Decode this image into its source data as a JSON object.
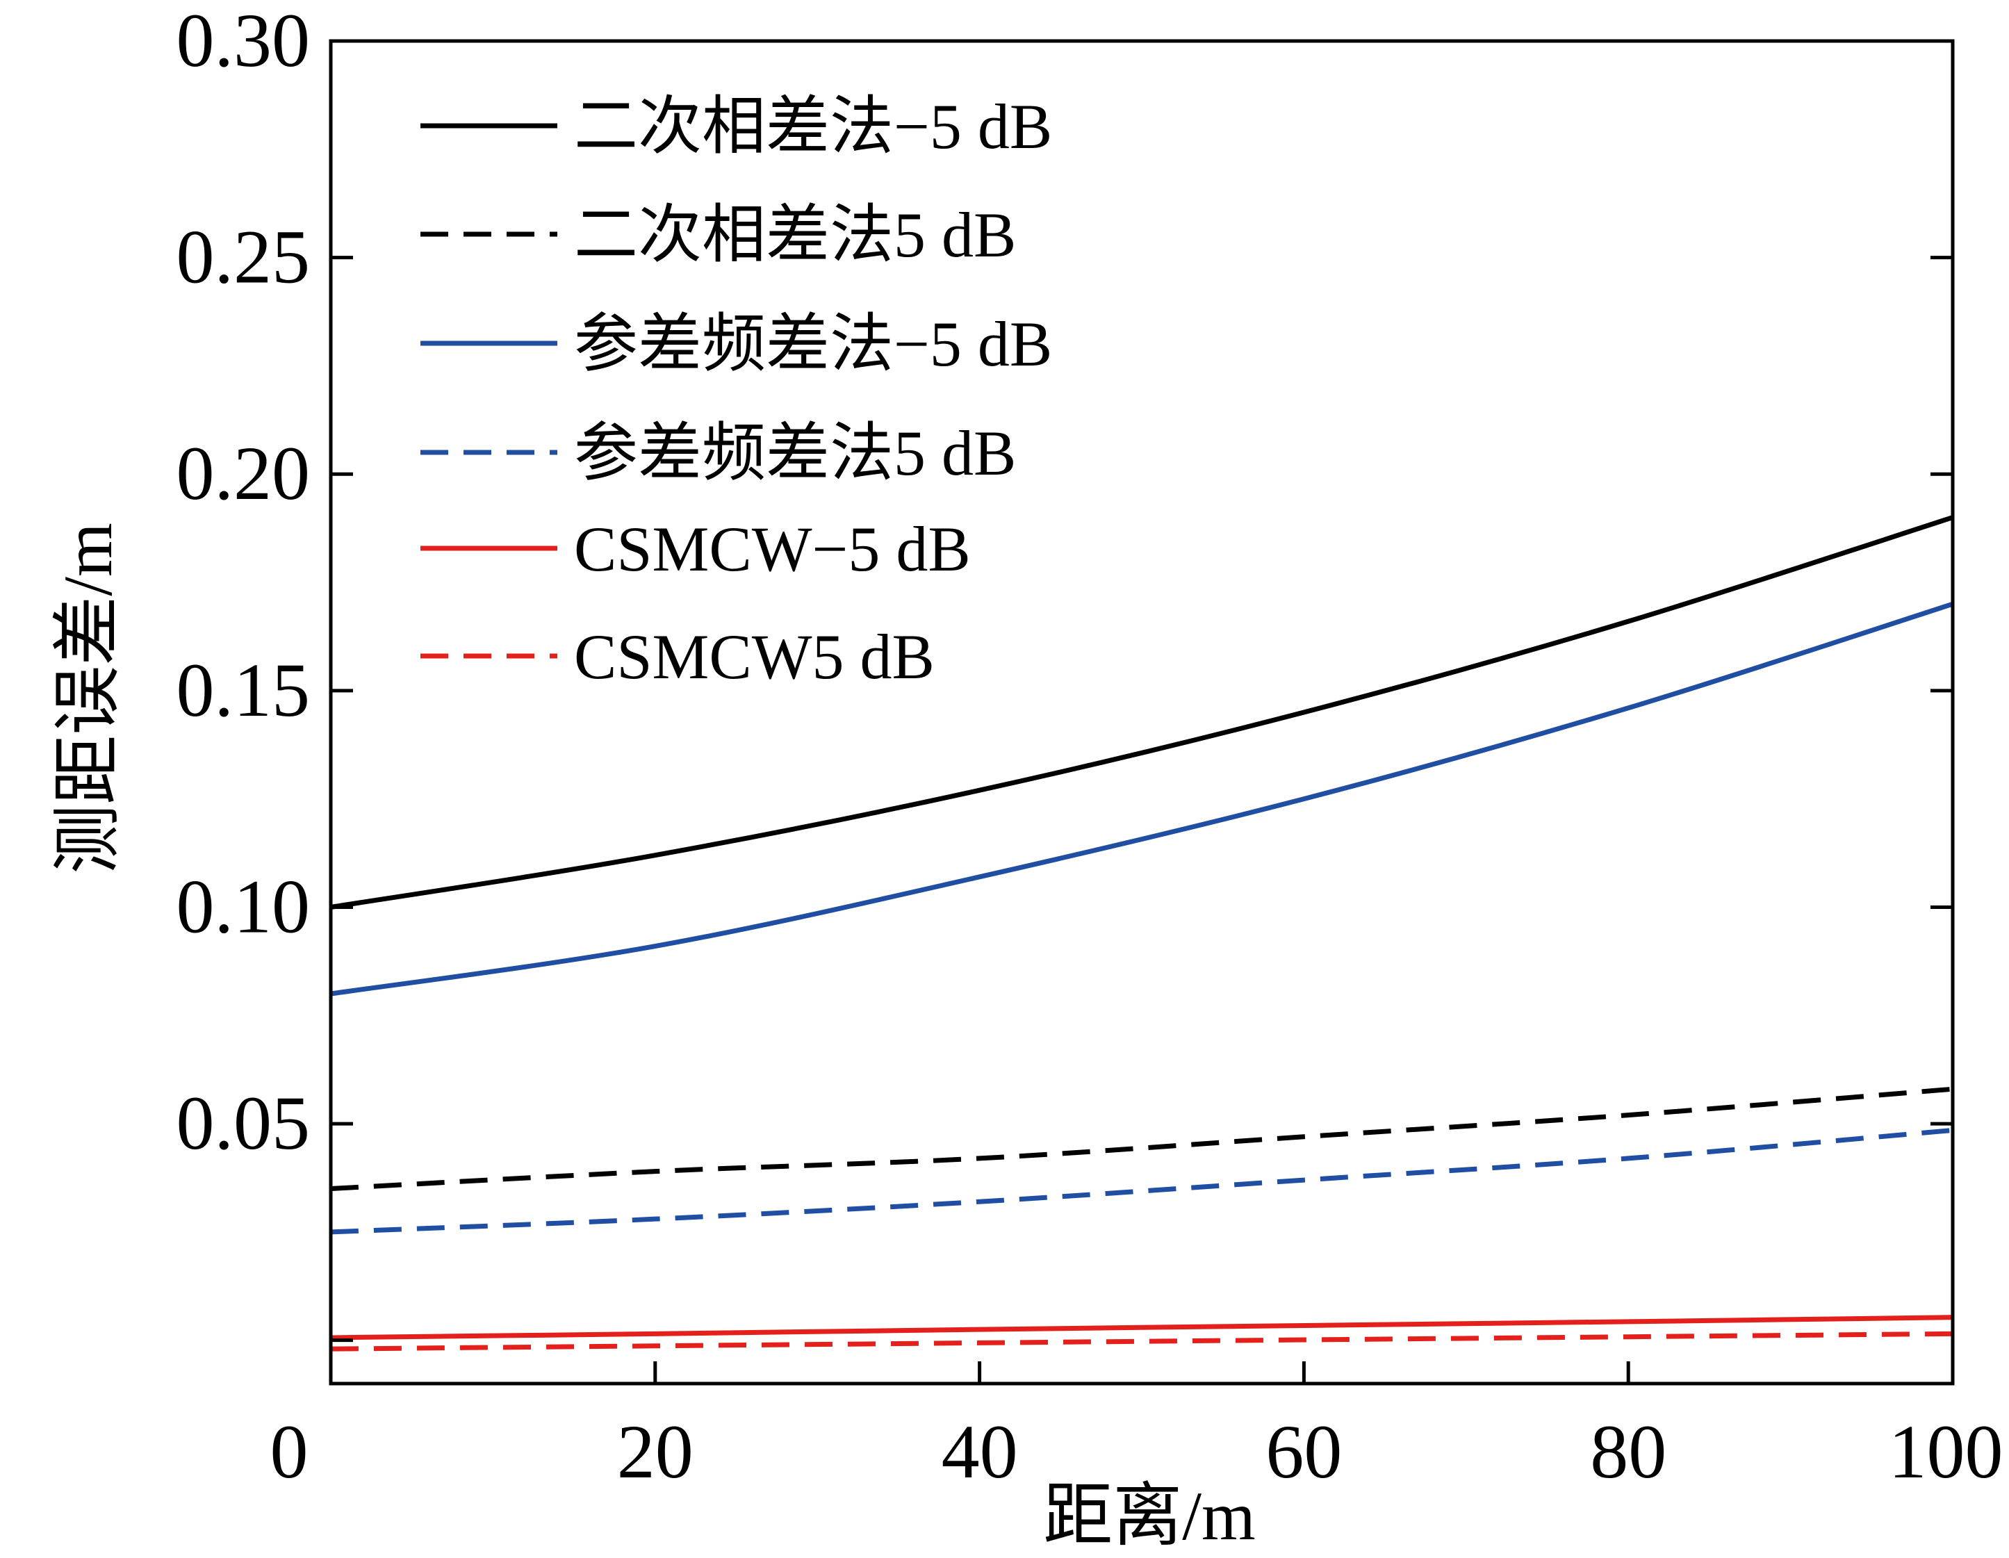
{
  "chart_data": {
    "type": "line",
    "title": "",
    "xlabel": "距离/m",
    "ylabel": "测距误差/m",
    "xlim": [
      0,
      100
    ],
    "ylim": [
      -0.01,
      0.3
    ],
    "xticks": [
      0,
      20,
      40,
      60,
      80,
      100
    ],
    "xtick_labels": [
      "0",
      "20",
      "40",
      "60",
      "80",
      "100"
    ],
    "yticks": [
      0.05,
      0.1,
      0.15,
      0.2,
      0.25,
      0.3
    ],
    "ytick_labels": [
      "0.05",
      "0.10",
      "0.15",
      "0.20",
      "0.25",
      "0.30"
    ],
    "grid": false,
    "legend_position": "top-left",
    "x": [
      0,
      20,
      40,
      60,
      80,
      100
    ],
    "series": [
      {
        "name": "二次相差法−5 dB",
        "color": "#000000",
        "dash": "solid",
        "values": [
          0.1,
          0.112,
          0.127,
          0.145,
          0.166,
          0.19
        ]
      },
      {
        "name": "二次相差法5 dB",
        "color": "#000000",
        "dash": "dashed",
        "values": [
          0.035,
          0.039,
          0.042,
          0.047,
          0.052,
          0.058
        ]
      },
      {
        "name": "参差频差法−5 dB",
        "color": "#1f4ea3",
        "dash": "solid",
        "values": [
          0.08,
          0.091,
          0.107,
          0.125,
          0.146,
          0.17
        ]
      },
      {
        "name": "参差频差法5 dB",
        "color": "#1f4ea3",
        "dash": "dashed",
        "values": [
          0.025,
          0.028,
          0.032,
          0.037,
          0.042,
          0.0485
        ]
      },
      {
        "name": "CSMCW−5 dB",
        "color": "#e3201b",
        "dash": "solid",
        "values": [
          0.0006,
          0.0015,
          0.0025,
          0.0034,
          0.0043,
          0.0053
        ]
      },
      {
        "name": "CSMCW5 dB",
        "color": "#e3201b",
        "dash": "dashed",
        "values": [
          -0.002,
          -0.0013,
          -0.0006,
          0.0001,
          0.0008,
          0.0015
        ]
      }
    ]
  }
}
